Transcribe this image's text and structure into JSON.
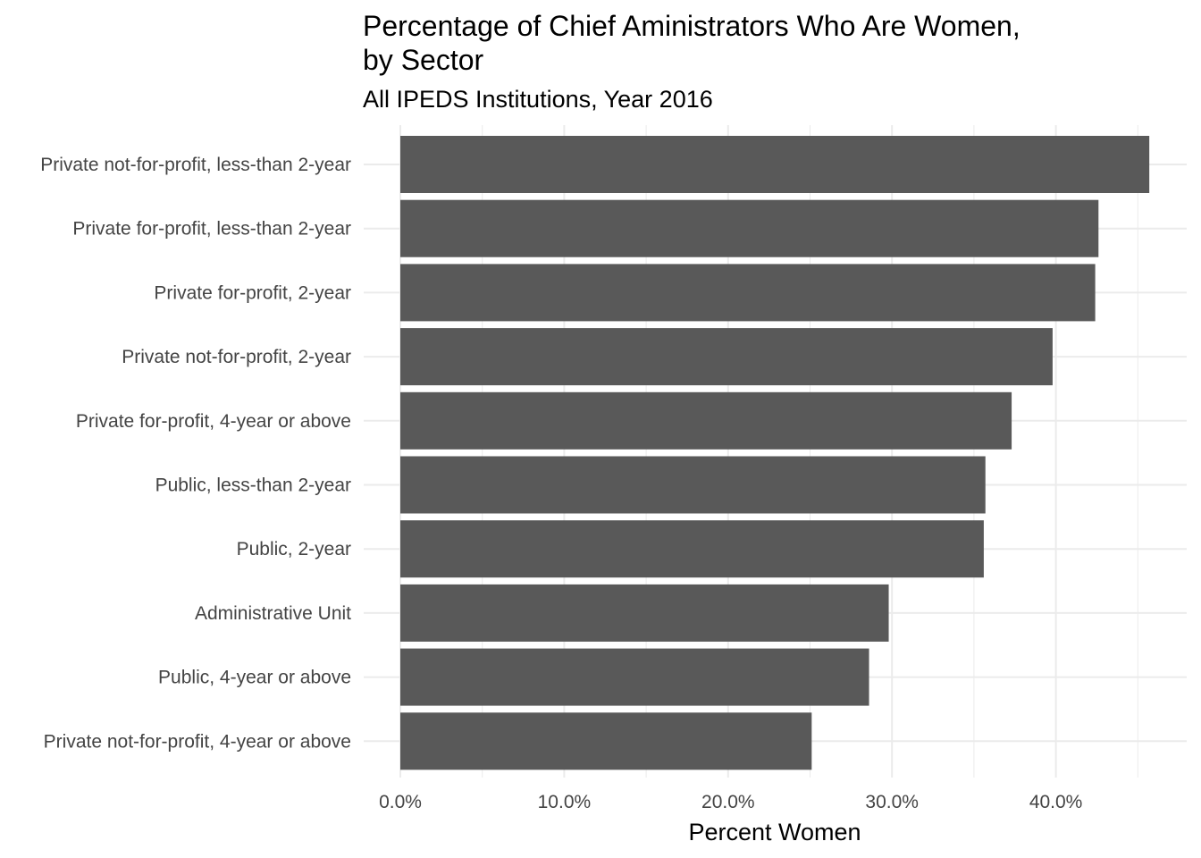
{
  "chart_data": {
    "type": "bar",
    "orientation": "horizontal",
    "title": "Percentage of Chief Aministrators Who Are Women,\nby Sector",
    "subtitle": "All IPEDS Institutions, Year 2016",
    "xlabel": "Percent Women",
    "ylabel": "",
    "categories": [
      "Private not-for-profit, less-than 2-year",
      "Private for-profit, less-than 2-year",
      "Private for-profit, 2-year",
      "Private not-for-profit, 2-year",
      "Private for-profit, 4-year or above",
      "Public, less-than 2-year",
      "Public, 2-year",
      "Administrative Unit",
      "Public, 4-year or above",
      "Private not-for-profit, 4-year or above"
    ],
    "values": [
      45.7,
      42.6,
      42.4,
      39.8,
      37.3,
      35.7,
      35.6,
      29.8,
      28.6,
      25.1
    ],
    "xlim": [
      0,
      46
    ],
    "xticks": [
      0,
      10,
      20,
      30,
      40
    ],
    "xtick_labels": [
      "0.0%",
      "10.0%",
      "20.0%",
      "30.0%",
      "40.0%"
    ],
    "grid": true,
    "bar_color": "#595959",
    "grid_color": "#ebebeb"
  }
}
